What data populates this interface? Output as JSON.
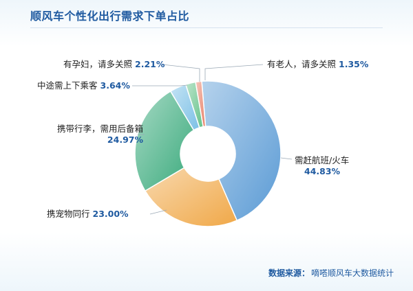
{
  "title": "顺风车个性化出行需求下单占比",
  "source": {
    "label": "数据来源：",
    "text": "嘀嗒顺风车大数据统计"
  },
  "chart_data": {
    "type": "pie",
    "donut": true,
    "title": "顺风车个性化出行需求下单占比",
    "unit": "%",
    "slices": [
      {
        "label": "需赶航班/火车",
        "value": 44.83,
        "value_text": "44.83%",
        "color": "#5b9bd5"
      },
      {
        "label": "携宠物同行",
        "value": 23.0,
        "value_text": "23.00%",
        "color": "#f0a848"
      },
      {
        "label": "携带行李，需用后备箱",
        "value": 24.97,
        "value_text": "24.97%",
        "color": "#3aaa7c"
      },
      {
        "label": "中途需上下乘客",
        "value": 3.64,
        "value_text": "3.64%",
        "color": "#7cc0e6"
      },
      {
        "label": "有孕妇，请多关照",
        "value": 2.21,
        "value_text": "2.21%",
        "color": "#66c28a"
      },
      {
        "label": "有老人，请多关照",
        "value": 1.35,
        "value_text": "1.35%",
        "color": "#e8826a"
      }
    ]
  }
}
